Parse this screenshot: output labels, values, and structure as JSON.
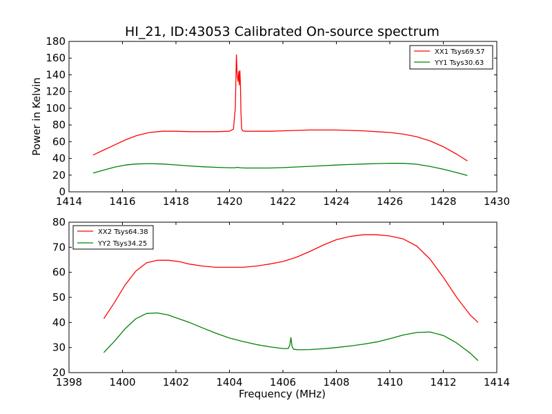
{
  "chart_data": [
    {
      "type": "line",
      "title": "HI_21, ID:43053 Calibrated On-source spectrum",
      "xlabel": "",
      "ylabel": "Power in Kelvin",
      "xlim": [
        1414,
        1430
      ],
      "ylim": [
        0,
        180
      ],
      "xticks": [
        "1414",
        "1416",
        "1418",
        "1420",
        "1422",
        "1424",
        "1426",
        "1428",
        "1430"
      ],
      "yticks": [
        "0",
        "20",
        "40",
        "60",
        "80",
        "100",
        "120",
        "140",
        "160",
        "180"
      ],
      "legend_position": "top-right",
      "grid": false,
      "series": [
        {
          "name": "XX1 Tsys69.57",
          "color": "#ff0000",
          "x": [
            1414.9,
            1415.3,
            1415.7,
            1416.1,
            1416.5,
            1417.0,
            1417.5,
            1418.0,
            1418.5,
            1419.0,
            1419.5,
            1420.0,
            1420.15,
            1420.22,
            1420.26,
            1420.29,
            1420.32,
            1420.35,
            1420.37,
            1420.39,
            1420.41,
            1420.43,
            1420.46,
            1420.5,
            1420.6,
            1421.0,
            1421.5,
            1422.0,
            1422.5,
            1423.0,
            1423.5,
            1424.0,
            1424.5,
            1425.0,
            1425.5,
            1426.0,
            1426.5,
            1427.0,
            1427.5,
            1428.0,
            1428.5,
            1428.9
          ],
          "values": [
            44,
            50,
            56,
            62,
            67,
            71,
            72.5,
            72.5,
            72,
            72,
            72,
            72.5,
            75,
            100,
            164,
            140,
            132,
            144,
            128,
            145,
            130,
            95,
            75,
            73,
            72.5,
            72.5,
            72.5,
            73,
            73.5,
            74,
            74,
            74,
            73.5,
            73,
            72,
            71,
            69,
            66,
            61,
            54,
            45,
            37
          ]
        },
        {
          "name": "YY1 Tsys30.63",
          "color": "#008000",
          "x": [
            1414.9,
            1415.3,
            1415.7,
            1416.1,
            1416.5,
            1417.0,
            1417.5,
            1418.0,
            1418.5,
            1419.0,
            1419.5,
            1420.0,
            1420.2,
            1420.3,
            1420.4,
            1420.6,
            1421.0,
            1421.5,
            1422.0,
            1422.5,
            1423.0,
            1423.5,
            1424.0,
            1424.5,
            1425.0,
            1425.5,
            1426.0,
            1426.5,
            1427.0,
            1427.5,
            1428.0,
            1428.5,
            1428.9
          ],
          "values": [
            22.5,
            26,
            29.5,
            32,
            33.3,
            33.8,
            33.3,
            32.2,
            31,
            30,
            29.3,
            28.8,
            28.8,
            29.3,
            28.8,
            28.5,
            28.5,
            28.5,
            29,
            29.7,
            30.5,
            31.3,
            32,
            32.7,
            33.3,
            33.8,
            34.2,
            34.1,
            33,
            30.5,
            27,
            23,
            19.5
          ]
        }
      ]
    },
    {
      "type": "line",
      "title": "",
      "xlabel": "Frequency (MHz)",
      "ylabel": "",
      "xlim": [
        1398,
        1414
      ],
      "ylim": [
        20,
        80
      ],
      "xticks": [
        "1398",
        "1400",
        "1402",
        "1404",
        "1406",
        "1408",
        "1410",
        "1412",
        "1414"
      ],
      "yticks": [
        "20",
        "30",
        "40",
        "50",
        "60",
        "70",
        "80"
      ],
      "legend_position": "top-left",
      "grid": false,
      "series": [
        {
          "name": "XX2 Tsys64.38",
          "color": "#ff0000",
          "x": [
            1399.3,
            1399.7,
            1400.1,
            1400.5,
            1400.9,
            1401.3,
            1401.7,
            1402.1,
            1402.5,
            1403.0,
            1403.5,
            1404.0,
            1404.5,
            1405.0,
            1405.5,
            1406.0,
            1406.5,
            1407.0,
            1407.5,
            1408.0,
            1408.5,
            1409.0,
            1409.5,
            1410.0,
            1410.5,
            1411.0,
            1411.5,
            1412.0,
            1412.5,
            1413.0,
            1413.3
          ],
          "values": [
            41.5,
            48,
            55,
            60.5,
            63.8,
            64.8,
            64.8,
            64.3,
            63.3,
            62.5,
            62,
            62,
            62,
            62.5,
            63.3,
            64.3,
            66,
            68.3,
            70.8,
            73,
            74.3,
            75,
            75,
            74.5,
            73.3,
            70.5,
            65.3,
            58,
            50,
            43,
            40
          ]
        },
        {
          "name": "YY2 Tsys34.25",
          "color": "#008000",
          "x": [
            1399.3,
            1399.7,
            1400.1,
            1400.5,
            1400.9,
            1401.3,
            1401.7,
            1402.1,
            1402.5,
            1403.0,
            1403.5,
            1404.0,
            1404.5,
            1405.0,
            1405.5,
            1406.0,
            1406.2,
            1406.26,
            1406.3,
            1406.34,
            1406.4,
            1406.6,
            1407.0,
            1407.5,
            1408.0,
            1408.5,
            1409.0,
            1409.5,
            1410.0,
            1410.5,
            1411.0,
            1411.5,
            1412.0,
            1412.5,
            1413.0,
            1413.3
          ],
          "values": [
            28,
            32.5,
            37.5,
            41.5,
            43.6,
            43.8,
            43,
            41.5,
            40,
            37.8,
            35.7,
            33.8,
            32.4,
            31.2,
            30.3,
            29.6,
            29.6,
            31,
            34,
            30.5,
            29.3,
            29.1,
            29.2,
            29.5,
            30,
            30.6,
            31.3,
            32.2,
            33.5,
            35,
            36,
            36.2,
            34.8,
            31.8,
            27.8,
            24.8
          ]
        }
      ]
    }
  ]
}
